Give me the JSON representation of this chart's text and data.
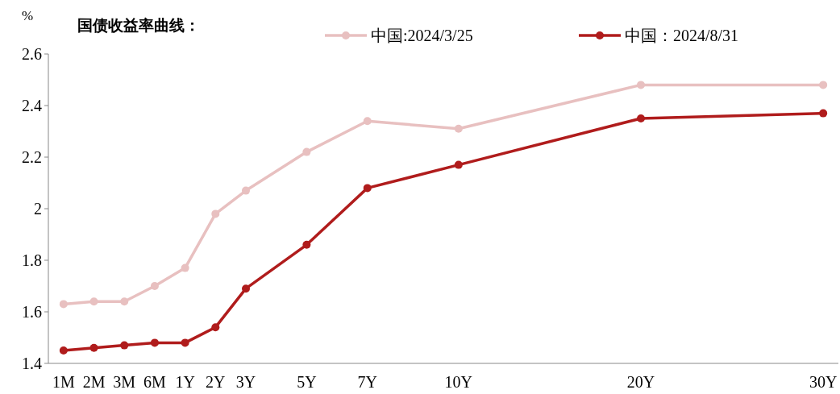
{
  "chart_data": {
    "type": "line",
    "title": "国债收益率曲线：",
    "ylabel": "%",
    "categories": [
      "1M",
      "2M",
      "3M",
      "6M",
      "1Y",
      "2Y",
      "3Y",
      null,
      "5Y",
      null,
      "7Y",
      null,
      null,
      "10Y",
      null,
      null,
      null,
      null,
      null,
      "20Y",
      null,
      null,
      null,
      null,
      null,
      "30Y"
    ],
    "ylim": [
      1.4,
      2.6
    ],
    "yticks": [
      1.4,
      1.6,
      1.8,
      2,
      2.2,
      2.4,
      2.6
    ],
    "legend": "top",
    "marker": "circle",
    "grid": false,
    "series": [
      {
        "name": "中国:2024/3/25",
        "color": "#e8c0c0",
        "values": [
          1.63,
          1.64,
          1.64,
          1.7,
          1.77,
          1.98,
          2.07,
          null,
          2.22,
          null,
          2.34,
          null,
          null,
          2.31,
          null,
          null,
          null,
          null,
          null,
          2.48,
          null,
          null,
          null,
          null,
          null,
          2.48
        ]
      },
      {
        "name": "中国：2024/8/31",
        "color": "#b01c1c",
        "values": [
          1.45,
          1.46,
          1.47,
          1.48,
          1.48,
          1.54,
          1.69,
          null,
          1.86,
          null,
          2.08,
          null,
          null,
          2.17,
          null,
          null,
          null,
          null,
          null,
          2.35,
          null,
          null,
          null,
          null,
          null,
          2.37
        ]
      }
    ]
  }
}
